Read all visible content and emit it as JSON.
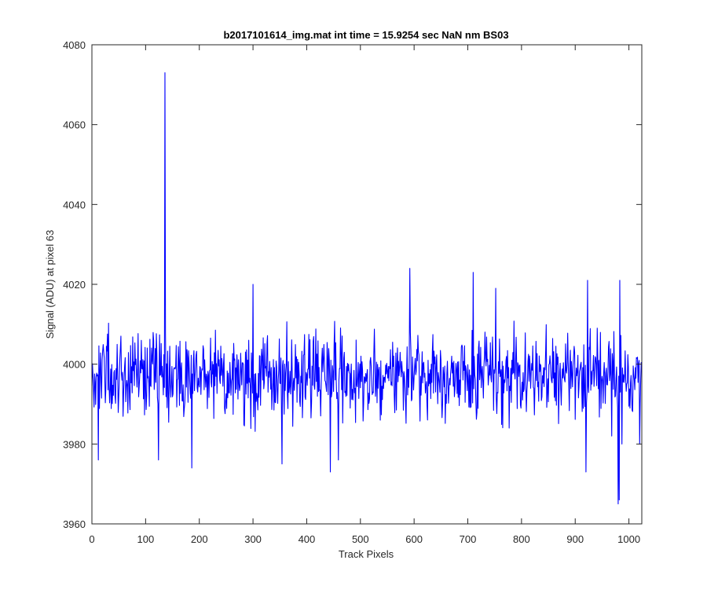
{
  "chart_data": {
    "type": "line",
    "title": "b2017101614_img.mat int time = 15.9254 sec  NaN nm BS03",
    "xlabel": "Track Pixels",
    "ylabel": "Signal (ADU) at pixel 63",
    "xlim": [
      0,
      1024
    ],
    "ylim": [
      3960,
      4080
    ],
    "xticks": [
      0,
      100,
      200,
      300,
      400,
      500,
      600,
      700,
      800,
      900,
      1000
    ],
    "yticks": [
      3960,
      3980,
      4000,
      4020,
      4040,
      4060,
      4080
    ],
    "grid": false,
    "line_color": "#0000ff",
    "n_points": 1024,
    "baseline_mean": 3997,
    "spikes": [
      {
        "x": 136,
        "y": 4073
      },
      {
        "x": 137,
        "y": 4008
      },
      {
        "x": 12,
        "y": 3976
      },
      {
        "x": 124,
        "y": 3976
      },
      {
        "x": 186,
        "y": 3974
      },
      {
        "x": 300,
        "y": 4020
      },
      {
        "x": 354,
        "y": 3975
      },
      {
        "x": 444,
        "y": 3973
      },
      {
        "x": 459,
        "y": 3976
      },
      {
        "x": 592,
        "y": 4024
      },
      {
        "x": 710,
        "y": 4023
      },
      {
        "x": 752,
        "y": 4019
      },
      {
        "x": 920,
        "y": 3973
      },
      {
        "x": 923,
        "y": 4021
      },
      {
        "x": 980,
        "y": 3965
      },
      {
        "x": 982,
        "y": 3966
      },
      {
        "x": 983,
        "y": 4021
      },
      {
        "x": 987,
        "y": 3980
      },
      {
        "x": 1020,
        "y": 3980
      }
    ]
  }
}
